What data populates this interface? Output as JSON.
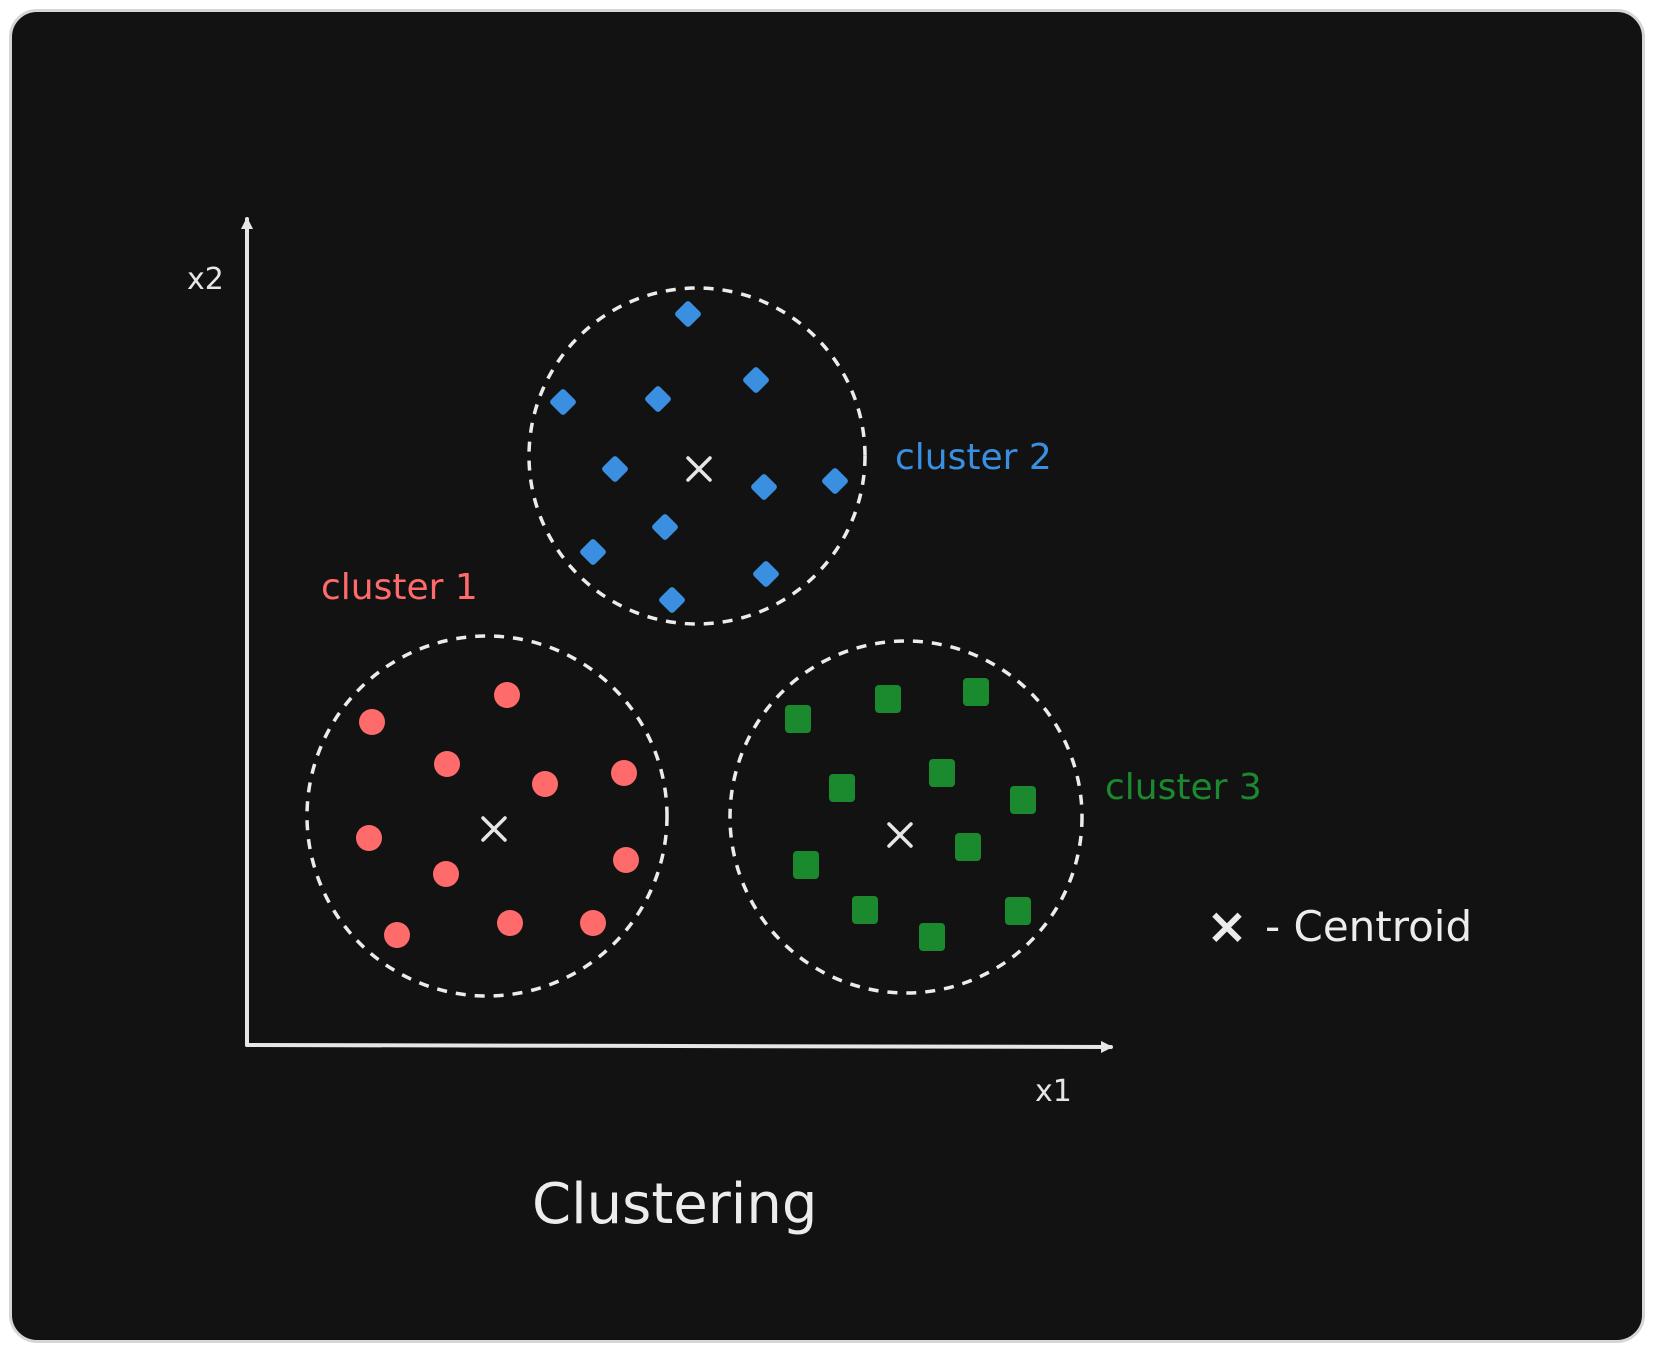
{
  "title": "Clustering",
  "axes": {
    "x_label": "x1",
    "y_label": "x2"
  },
  "legend": {
    "symbol": "×",
    "text": "- Centroid"
  },
  "colors": {
    "background": "#121212",
    "frame_border": "#d6d6d6",
    "axis": "#e6e6e6",
    "cluster_outline": "#ececec",
    "cluster1": "#ff6b6b",
    "cluster2": "#3b8fe0",
    "cluster3": "#1b8a2f"
  },
  "clusters": [
    {
      "label": "cluster 1",
      "marker": "circle",
      "color": "#ff6b6b"
    },
    {
      "label": "cluster 2",
      "marker": "diamond",
      "color": "#3b8fe0"
    },
    {
      "label": "cluster 3",
      "marker": "square",
      "color": "#1b8a2f"
    }
  ]
}
